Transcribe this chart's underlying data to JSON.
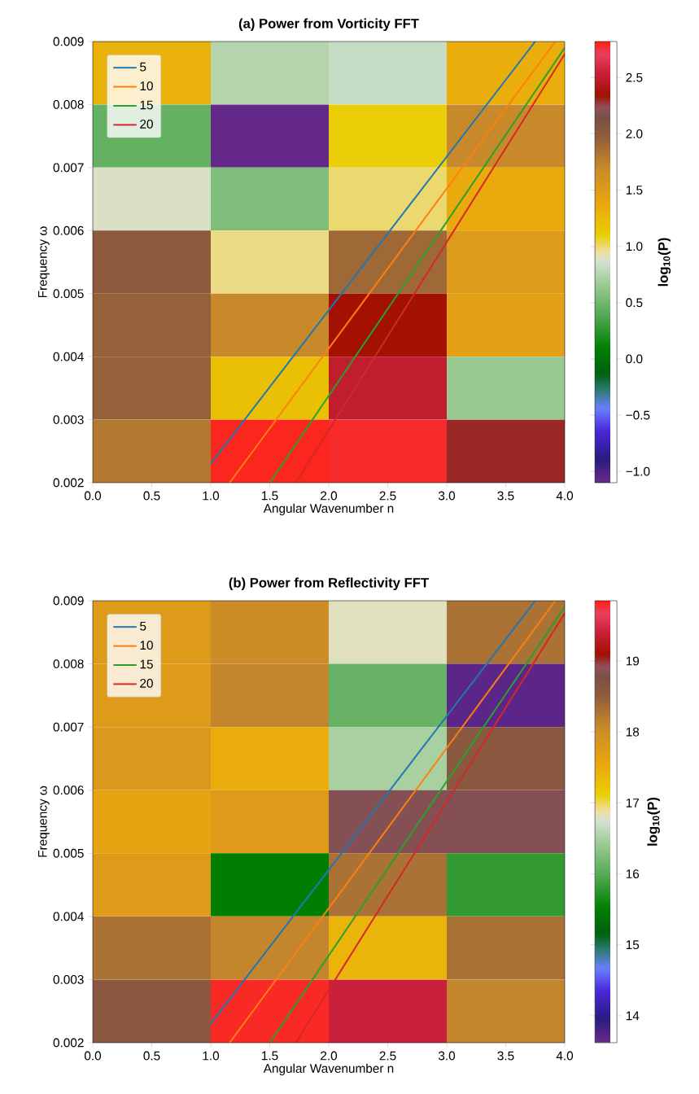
{
  "chart_data": [
    {
      "type": "heatmap",
      "title": "(a) Power from Vorticity FFT",
      "xlabel": "Angular Wavenumber n",
      "ylabel": "Frequency ω",
      "clabel": "log$_{10}$(P)",
      "xlim": [
        0,
        4
      ],
      "ylim": [
        0.002,
        0.009
      ],
      "xticks": [
        {
          "value": 0,
          "label": "0.0"
        },
        {
          "value": 0.5,
          "label": "0.5"
        },
        {
          "value": 1,
          "label": "1.0"
        },
        {
          "value": 1.5,
          "label": "1.5"
        },
        {
          "value": 2,
          "label": "2.0"
        },
        {
          "value": 2.5,
          "label": "2.5"
        },
        {
          "value": 3,
          "label": "3.0"
        },
        {
          "value": 3.5,
          "label": "3.5"
        },
        {
          "value": 4,
          "label": "4.0"
        }
      ],
      "yticks": [
        0.002,
        0.003,
        0.004,
        0.005,
        0.006,
        0.007,
        0.008,
        0.009
      ],
      "clim": [
        -1.1,
        2.82
      ],
      "cticks": [
        {
          "value": -1,
          "label": "−1.0"
        },
        {
          "value": -0.5,
          "label": "−0.5"
        },
        {
          "value": 0,
          "label": "0.0"
        },
        {
          "value": 0.5,
          "label": "0.5"
        },
        {
          "value": 1,
          "label": "1.0"
        },
        {
          "value": 1.5,
          "label": "1.5"
        },
        {
          "value": 2,
          "label": "2.0"
        },
        {
          "value": 2.5,
          "label": "2.5"
        }
      ],
      "cells": [
        [
          1.3,
          0.75,
          0.82,
          1.32
        ],
        [
          0.45,
          -1.08,
          1.1,
          1.7
        ],
        [
          0.88,
          0.55,
          1.0,
          1.35
        ],
        [
          2.0,
          0.98,
          1.9,
          1.5
        ],
        [
          1.95,
          1.7,
          2.35,
          1.45
        ],
        [
          1.95,
          1.2,
          2.5,
          0.65
        ],
        [
          1.8,
          2.8,
          2.78,
          2.3
        ]
      ],
      "legend": "top left",
      "series": [
        {
          "type": "line",
          "name": "5",
          "color": "#1f77b4",
          "x": [
            1.0,
            3.75
          ],
          "values": [
            0.0023,
            0.009
          ]
        },
        {
          "type": "line",
          "name": "10",
          "color": "#ff7f0e",
          "x": [
            1.16,
            3.92
          ],
          "values": [
            0.002,
            0.009
          ]
        },
        {
          "type": "line",
          "name": "15",
          "color": "#2ca02c",
          "x": [
            1.5,
            4.0
          ],
          "values": [
            0.002,
            0.0089
          ]
        },
        {
          "type": "line",
          "name": "20",
          "color": "#d62728",
          "x": [
            1.72,
            4.0
          ],
          "values": [
            0.002,
            0.0088
          ]
        }
      ]
    },
    {
      "type": "heatmap",
      "title": "(b) Power from Reflectivity FFT",
      "xlabel": "Angular Wavenumber n",
      "ylabel": "Frequency ω",
      "clabel": "log$_{10}$(P)",
      "xlim": [
        0,
        4
      ],
      "ylim": [
        0.002,
        0.009
      ],
      "xticks": [
        {
          "value": 0,
          "label": "0.0"
        },
        {
          "value": 0.5,
          "label": "0.5"
        },
        {
          "value": 1,
          "label": "1.0"
        },
        {
          "value": 1.5,
          "label": "1.5"
        },
        {
          "value": 2,
          "label": "2.0"
        },
        {
          "value": 2.5,
          "label": "2.5"
        },
        {
          "value": 3,
          "label": "3.0"
        },
        {
          "value": 3.5,
          "label": "3.5"
        },
        {
          "value": 4,
          "label": "4.0"
        }
      ],
      "yticks": [
        0.002,
        0.003,
        0.004,
        0.005,
        0.006,
        0.007,
        0.008,
        0.009
      ],
      "clim": [
        13.62,
        19.85
      ],
      "cticks": [
        14,
        15,
        16,
        17,
        18,
        19
      ],
      "cells": [
        [
          17.75,
          18.0,
          16.8,
          18.3
        ],
        [
          17.75,
          18.1,
          16.1,
          13.7
        ],
        [
          17.8,
          17.5,
          16.5,
          18.6
        ],
        [
          17.6,
          17.75,
          18.85,
          18.85
        ],
        [
          17.75,
          15.5,
          18.3,
          15.8
        ],
        [
          18.3,
          18.1,
          17.4,
          18.3
        ],
        [
          18.6,
          19.8,
          19.4,
          18.1
        ]
      ],
      "legend": "top left",
      "series": [
        {
          "type": "line",
          "name": "5",
          "color": "#1f77b4",
          "x": [
            1.0,
            3.75
          ],
          "values": [
            0.0023,
            0.009
          ]
        },
        {
          "type": "line",
          "name": "10",
          "color": "#ff7f0e",
          "x": [
            1.16,
            3.92
          ],
          "values": [
            0.002,
            0.009
          ]
        },
        {
          "type": "line",
          "name": "15",
          "color": "#2ca02c",
          "x": [
            1.5,
            4.0
          ],
          "values": [
            0.002,
            0.0089
          ]
        },
        {
          "type": "line",
          "name": "20",
          "color": "#d62728",
          "x": [
            1.72,
            4.0
          ],
          "values": [
            0.002,
            0.0088
          ]
        }
      ]
    }
  ]
}
